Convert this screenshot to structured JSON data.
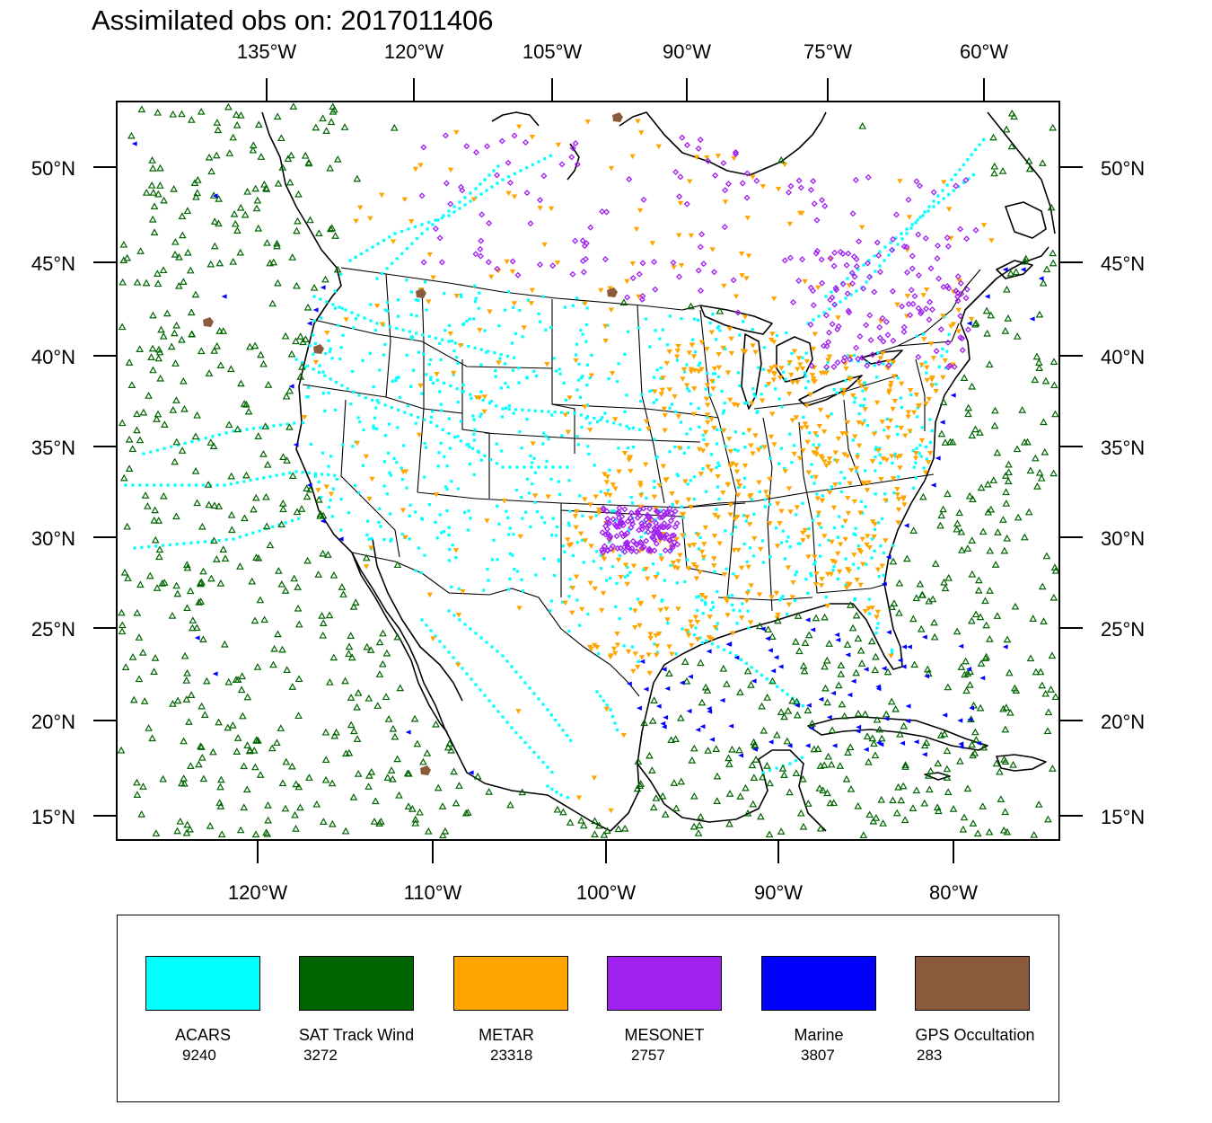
{
  "title": "Assimilated obs on: 2017011406",
  "axes": {
    "top_lon_labels": [
      "135°W",
      "120°W",
      "105°W",
      "90°W",
      "75°W",
      "60°W"
    ],
    "bottom_lon_labels": [
      "120°W",
      "110°W",
      "100°W",
      "90°W",
      "80°W"
    ],
    "lat_labels": [
      "50°N",
      "45°N",
      "40°N",
      "35°N",
      "30°N",
      "25°N",
      "20°N",
      "15°N"
    ]
  },
  "legend": [
    {
      "name": "ACARS",
      "count": "9240",
      "color": "#00ffff"
    },
    {
      "name": "SAT Track Wind",
      "count": "3272",
      "color": "#006400"
    },
    {
      "name": "METAR",
      "count": "23318",
      "color": "#ffa500"
    },
    {
      "name": "MESONET",
      "count": "2757",
      "color": "#a020f0"
    },
    {
      "name": "Marine",
      "count": "3807",
      "color": "#0000ff"
    },
    {
      "name": "GPS Occultation",
      "count": "283",
      "color": "#8b5a3c"
    }
  ],
  "colors": {
    "acars": "#00ffff",
    "sat_track_wind": "#006400",
    "metar": "#ffa500",
    "mesonet": "#a020f0",
    "marine": "#0000ff",
    "gps_occultation": "#8b5a3c",
    "coastline": "#000000"
  },
  "symbols": {
    "acars": "filled-dot",
    "sat_track_wind": "open-triangle",
    "metar": "filled-down-triangle",
    "mesonet": "open-diamond",
    "marine": "filled-left-triangle",
    "gps_occultation": "filled-blob"
  }
}
